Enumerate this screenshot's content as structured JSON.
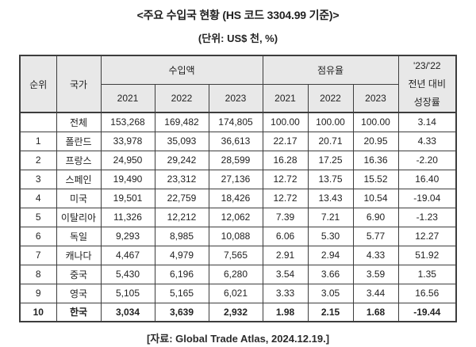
{
  "title": "<주요 수입국 현황 (HS 코드 3304.99 기준)>",
  "unit_note": "(단위: US$ 천, %)",
  "source": "[자료: Global Trade Atlas, 2024.12.19.]",
  "colors": {
    "header_bg": "#e8e8e8",
    "border": "#3d3d3d",
    "text": "#222222",
    "background": "#ffffff"
  },
  "table": {
    "headers": {
      "rank": "순위",
      "country": "국가",
      "import_amount": "수입액",
      "market_share": "점유율",
      "growth_line1": "'23/'22",
      "growth_line2": "전년 대비",
      "growth_line3": "성장률",
      "years": [
        "2021",
        "2022",
        "2023"
      ]
    },
    "rows": [
      {
        "rank": "",
        "country": "전체",
        "import": [
          "153,268",
          "169,482",
          "174,805"
        ],
        "share": [
          "100.00",
          "100.00",
          "100.00"
        ],
        "growth": "3.14",
        "bold": false
      },
      {
        "rank": "1",
        "country": "폴란드",
        "import": [
          "33,978",
          "35,093",
          "36,613"
        ],
        "share": [
          "22.17",
          "20.71",
          "20.95"
        ],
        "growth": "4.33",
        "bold": false
      },
      {
        "rank": "2",
        "country": "프랑스",
        "import": [
          "24,950",
          "29,242",
          "28,599"
        ],
        "share": [
          "16.28",
          "17.25",
          "16.36"
        ],
        "growth": "-2.20",
        "bold": false
      },
      {
        "rank": "3",
        "country": "스페인",
        "import": [
          "19,490",
          "23,312",
          "27,136"
        ],
        "share": [
          "12.72",
          "13.75",
          "15.52"
        ],
        "growth": "16.40",
        "bold": false
      },
      {
        "rank": "4",
        "country": "미국",
        "import": [
          "19,501",
          "22,759",
          "18,426"
        ],
        "share": [
          "12.72",
          "13.43",
          "10.54"
        ],
        "growth": "-19.04",
        "bold": false
      },
      {
        "rank": "5",
        "country": "이탈리아",
        "import": [
          "11,326",
          "12,212",
          "12,062"
        ],
        "share": [
          "7.39",
          "7.21",
          "6.90"
        ],
        "growth": "-1.23",
        "bold": false
      },
      {
        "rank": "6",
        "country": "독일",
        "import": [
          "9,293",
          "8,985",
          "10,088"
        ],
        "share": [
          "6.06",
          "5.30",
          "5.77"
        ],
        "growth": "12.27",
        "bold": false
      },
      {
        "rank": "7",
        "country": "캐나다",
        "import": [
          "4,467",
          "4,979",
          "7,565"
        ],
        "share": [
          "2.91",
          "2.94",
          "4.33"
        ],
        "growth": "51.92",
        "bold": false
      },
      {
        "rank": "8",
        "country": "중국",
        "import": [
          "5,430",
          "6,196",
          "6,280"
        ],
        "share": [
          "3.54",
          "3.66",
          "3.59"
        ],
        "growth": "1.35",
        "bold": false
      },
      {
        "rank": "9",
        "country": "영국",
        "import": [
          "5,105",
          "5,165",
          "6,021"
        ],
        "share": [
          "3.33",
          "3.05",
          "3.44"
        ],
        "growth": "16.56",
        "bold": false
      },
      {
        "rank": "10",
        "country": "한국",
        "import": [
          "3,034",
          "3,639",
          "2,932"
        ],
        "share": [
          "1.98",
          "2.15",
          "1.68"
        ],
        "growth": "-19.44",
        "bold": true
      }
    ]
  },
  "chart_data": {
    "type": "table",
    "title": "주요 수입국 현황 (HS 코드 3304.99 기준)",
    "unit": "US$ 천, %",
    "columns": [
      "순위",
      "국가",
      "수입액 2021",
      "수입액 2022",
      "수입액 2023",
      "점유율 2021",
      "점유율 2022",
      "점유율 2023",
      "'23/'22 전년 대비 성장률"
    ],
    "rows": [
      [
        null,
        "전체",
        153268,
        169482,
        174805,
        100.0,
        100.0,
        100.0,
        3.14
      ],
      [
        1,
        "폴란드",
        33978,
        35093,
        36613,
        22.17,
        20.71,
        20.95,
        4.33
      ],
      [
        2,
        "프랑스",
        24950,
        29242,
        28599,
        16.28,
        17.25,
        16.36,
        -2.2
      ],
      [
        3,
        "스페인",
        19490,
        23312,
        27136,
        12.72,
        13.75,
        15.52,
        16.4
      ],
      [
        4,
        "미국",
        19501,
        22759,
        18426,
        12.72,
        13.43,
        10.54,
        -19.04
      ],
      [
        5,
        "이탈리아",
        11326,
        12212,
        12062,
        7.39,
        7.21,
        6.9,
        -1.23
      ],
      [
        6,
        "독일",
        9293,
        8985,
        10088,
        6.06,
        5.3,
        5.77,
        12.27
      ],
      [
        7,
        "캐나다",
        4467,
        4979,
        7565,
        2.91,
        2.94,
        4.33,
        51.92
      ],
      [
        8,
        "중국",
        5430,
        6196,
        6280,
        3.54,
        3.66,
        3.59,
        1.35
      ],
      [
        9,
        "영국",
        5105,
        5165,
        6021,
        3.33,
        3.05,
        3.44,
        16.56
      ],
      [
        10,
        "한국",
        3034,
        3639,
        2932,
        1.98,
        2.15,
        1.68,
        -19.44
      ]
    ],
    "source": "Global Trade Atlas, 2024.12.19."
  }
}
